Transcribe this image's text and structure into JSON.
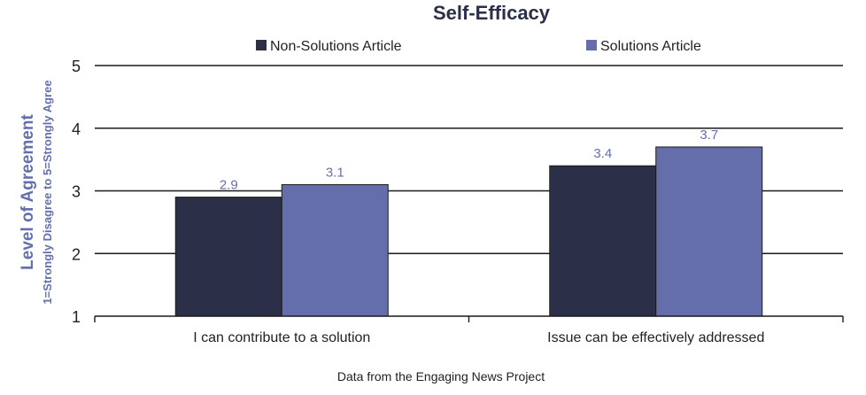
{
  "chart_data": {
    "type": "bar",
    "title": "Self-Efficacy",
    "categories": [
      "I can contribute to a solution",
      "Issue can be effectively addressed"
    ],
    "series": [
      {
        "name": "Non-Solutions Article",
        "values": [
          2.9,
          3.4
        ],
        "labels": [
          "2.9",
          "3.4"
        ],
        "color": "#2b3048"
      },
      {
        "name": "Solutions Article",
        "values": [
          3.1,
          3.7
        ],
        "labels": [
          "3.1",
          "3.7"
        ],
        "color": "#646eab"
      }
    ],
    "ylabel": "Level of Agreement",
    "ylabel_sub": "1=Strongly Disagree to 5=Strongly Agree",
    "ylim": [
      1,
      5
    ],
    "yticks": [
      "1",
      "2",
      "3",
      "4",
      "5"
    ],
    "grid": true,
    "legend_position": "top",
    "caption": "Data from the Engaging News Project"
  }
}
